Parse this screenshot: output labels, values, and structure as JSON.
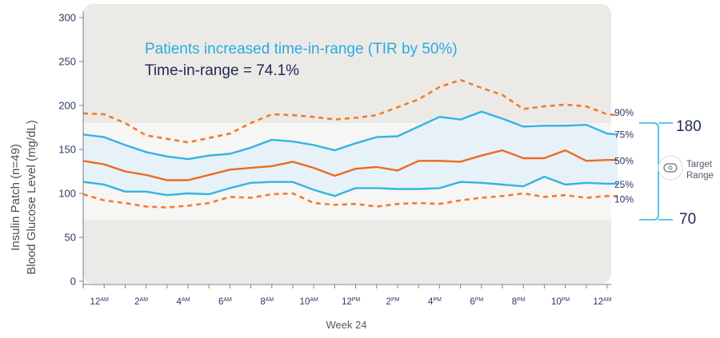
{
  "chart_data": {
    "type": "line",
    "title": "Patients increased time-in-range (TIR by 50%)",
    "subtitle": "Time-in-range = 74.1%",
    "xlabel": "Week 24",
    "ylabel_line1": "Insulin Patch (n=49)",
    "ylabel_line2": "Blood Glucose Level (mg/dL)",
    "ylim": [
      0,
      310
    ],
    "yticks": [
      0,
      50,
      100,
      150,
      200,
      250,
      300
    ],
    "x_ticks": [
      {
        "pos": 1,
        "num": "12",
        "ampm": "AM"
      },
      {
        "pos": 3,
        "num": "2",
        "ampm": "AM"
      },
      {
        "pos": 5,
        "num": "4",
        "ampm": "AM"
      },
      {
        "pos": 7,
        "num": "6",
        "ampm": "AM"
      },
      {
        "pos": 9,
        "num": "8",
        "ampm": "AM"
      },
      {
        "pos": 11,
        "num": "10",
        "ampm": "AM"
      },
      {
        "pos": 13,
        "num": "12",
        "ampm": "PM"
      },
      {
        "pos": 15,
        "num": "2",
        "ampm": "PM"
      },
      {
        "pos": 17,
        "num": "4",
        "ampm": "PM"
      },
      {
        "pos": 19,
        "num": "6",
        "ampm": "PM"
      },
      {
        "pos": 21,
        "num": "8",
        "ampm": "PM"
      },
      {
        "pos": 23,
        "num": "10",
        "ampm": "PM"
      },
      {
        "pos": 25,
        "num": "12",
        "ampm": "AM"
      }
    ],
    "xlim": [
      0,
      25.5
    ],
    "x": [
      0,
      1,
      2,
      3,
      4,
      5,
      6,
      7,
      8,
      9,
      10,
      11,
      12,
      13,
      14,
      15,
      16,
      17,
      18,
      19,
      20,
      21,
      22,
      23,
      24,
      25,
      25.5
    ],
    "target_range": {
      "low": 70,
      "high": 180,
      "label": "Target Range",
      "low_label": "70",
      "high_label": "180",
      "label_line1": "Target",
      "label_line2": "Range"
    },
    "series": [
      {
        "name": "90%",
        "style": "dashed",
        "color": "#f47b2a",
        "values": [
          191,
          190,
          180,
          166,
          162,
          158,
          163,
          168,
          180,
          190,
          189,
          187,
          184,
          186,
          189,
          198,
          207,
          221,
          229,
          220,
          212,
          196,
          199,
          201,
          199,
          190,
          189
        ]
      },
      {
        "name": "75%",
        "style": "solid",
        "color": "#35b3e3",
        "values": [
          167,
          164,
          155,
          147,
          142,
          139,
          143,
          145,
          152,
          161,
          159,
          155,
          149,
          157,
          164,
          165,
          176,
          187,
          184,
          193,
          185,
          176,
          177,
          177,
          178,
          168,
          167
        ]
      },
      {
        "name": "50%",
        "style": "solid",
        "color": "#ef6a1c",
        "values": [
          137,
          133,
          125,
          121,
          115,
          115,
          121,
          127,
          129,
          131,
          136,
          129,
          120,
          128,
          130,
          126,
          137,
          137,
          136,
          143,
          149,
          140,
          140,
          149,
          137,
          138,
          138
        ]
      },
      {
        "name": "25%",
        "style": "solid",
        "color": "#35b3e3",
        "values": [
          113,
          110,
          102,
          102,
          98,
          100,
          99,
          106,
          112,
          113,
          113,
          104,
          97,
          106,
          106,
          105,
          105,
          106,
          113,
          112,
          110,
          108,
          119,
          110,
          112,
          111,
          111
        ]
      },
      {
        "name": "10%",
        "style": "dashed",
        "color": "#f47b2a",
        "values": [
          99,
          92,
          89,
          85,
          84,
          86,
          89,
          96,
          95,
          99,
          100,
          89,
          87,
          88,
          85,
          88,
          89,
          88,
          92,
          95,
          97,
          100,
          96,
          98,
          95,
          97,
          97
        ]
      }
    ],
    "colors": {
      "plot_bg": "#eceae7",
      "band_fill": "#f6f6f4",
      "iqr_fill": "#e6f2f8",
      "axis": "#7a7f88",
      "bracket": "#35b3e3"
    }
  }
}
